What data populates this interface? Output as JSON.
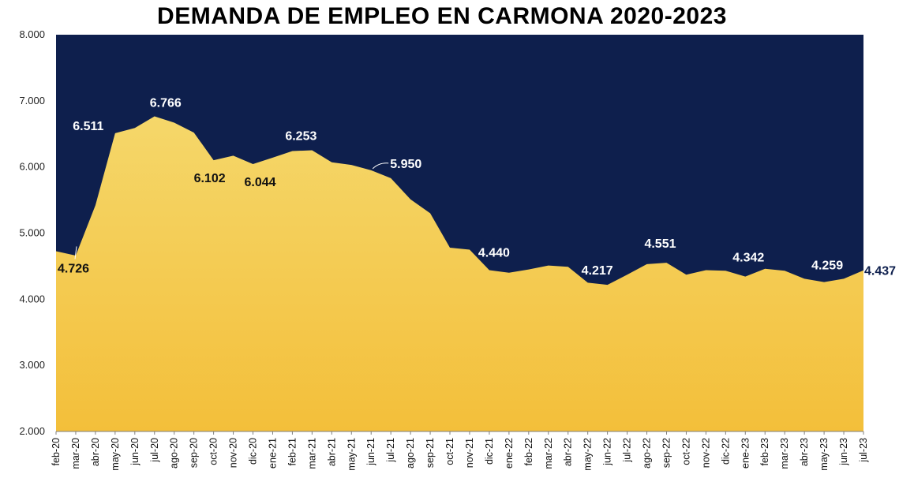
{
  "chart_data": {
    "type": "area",
    "title": "DEMANDA DE EMPLEO EN CARMONA 2020-2023",
    "xlabel": "",
    "ylabel": "",
    "ylim": [
      2000,
      8000
    ],
    "yticks": [
      "2.000",
      "3.000",
      "4.000",
      "5.000",
      "6.000",
      "7.000",
      "8.000"
    ],
    "ytick_values": [
      2000,
      3000,
      4000,
      5000,
      6000,
      7000,
      8000
    ],
    "grid": false,
    "colors": {
      "plot_bg": "#0e1f4d",
      "area_top": "#f5d76a",
      "area_bottom": "#f3bf3a",
      "light_label": "#ffffff",
      "dark_label": "#111111",
      "last_label": "#0e1f4d"
    },
    "categories": [
      "feb-20",
      "mar-20",
      "abr-20",
      "may-20",
      "jun-20",
      "jul-20",
      "ago-20",
      "sep-20",
      "oct-20",
      "nov-20",
      "dic-20",
      "ene-21",
      "feb-21",
      "mar-21",
      "abr-21",
      "may-21",
      "jun-21",
      "jul-21",
      "ago-21",
      "sep-21",
      "oct-21",
      "nov-21",
      "dic-21",
      "ene-22",
      "feb-22",
      "mar-22",
      "abr-22",
      "may-22",
      "jun-22",
      "jul-22",
      "ago-22",
      "sep-22",
      "oct-22",
      "nov-22",
      "dic-22",
      "ene-23",
      "feb-23",
      "mar-23",
      "abr-23",
      "may-23",
      "jun-23",
      "jul-23"
    ],
    "values": [
      4726,
      4660,
      5420,
      6511,
      6590,
      6766,
      6670,
      6520,
      6102,
      6170,
      6044,
      6140,
      6240,
      6253,
      6070,
      6030,
      5950,
      5830,
      5510,
      5300,
      4780,
      4750,
      4440,
      4400,
      4450,
      4510,
      4490,
      4250,
      4217,
      4370,
      4530,
      4551,
      4370,
      4440,
      4430,
      4342,
      4460,
      4430,
      4310,
      4259,
      4310,
      4437
    ],
    "data_labels": [
      {
        "index": 0,
        "text": "4.726",
        "style": "dark"
      },
      {
        "index": 3,
        "text": "6.511",
        "style": "light"
      },
      {
        "index": 5,
        "text": "6.766",
        "style": "light"
      },
      {
        "index": 8,
        "text": "6.102",
        "style": "dark"
      },
      {
        "index": 10,
        "text": "6.044",
        "style": "dark"
      },
      {
        "index": 13,
        "text": "6.253",
        "style": "light"
      },
      {
        "index": 16,
        "text": "5.950",
        "style": "light"
      },
      {
        "index": 22,
        "text": "4.440",
        "style": "light"
      },
      {
        "index": 28,
        "text": "4.217",
        "style": "light"
      },
      {
        "index": 31,
        "text": "4.551",
        "style": "light"
      },
      {
        "index": 35,
        "text": "4.342",
        "style": "light"
      },
      {
        "index": 39,
        "text": "4.259",
        "style": "light"
      },
      {
        "index": 41,
        "text": "4.437",
        "style": "last"
      }
    ]
  }
}
